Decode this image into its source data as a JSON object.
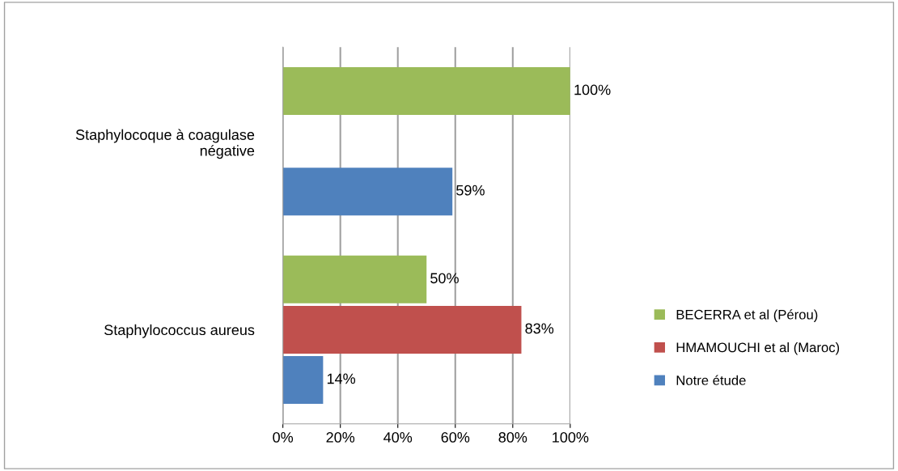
{
  "chart_data": {
    "type": "bar",
    "orientation": "horizontal",
    "categories": [
      "Staphylocoque à coagulase\nnégative",
      "Staphylococcus aureus"
    ],
    "series": [
      {
        "name": "BECERRA et al (Pérou)",
        "color": "#9bbb59",
        "values": [
          100,
          50
        ],
        "value_labels": [
          "100%",
          "50%"
        ]
      },
      {
        "name": "HMAMOUCHI et al (Maroc)",
        "color": "#c0504d",
        "values": [
          null,
          83
        ],
        "value_labels": [
          null,
          "83%"
        ]
      },
      {
        "name": "Notre étude",
        "color": "#4f81bd",
        "values": [
          59,
          14
        ],
        "value_labels": [
          "59%",
          "14%"
        ]
      }
    ],
    "xlim": [
      0,
      100
    ],
    "xticks": [
      {
        "value": 0,
        "label": "0%"
      },
      {
        "value": 20,
        "label": "20%"
      },
      {
        "value": 40,
        "label": "40%"
      },
      {
        "value": 60,
        "label": "60%"
      },
      {
        "value": 80,
        "label": "80%"
      },
      {
        "value": 100,
        "label": "100%"
      }
    ],
    "grid": "x",
    "legend": "right"
  }
}
